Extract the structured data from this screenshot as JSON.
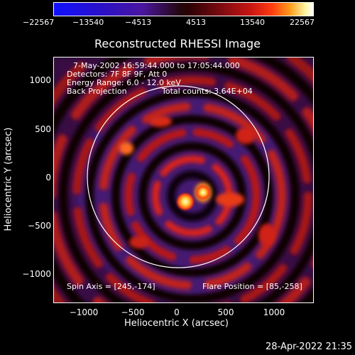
{
  "colorbar": {
    "ticks": [
      "−22567",
      "−13540",
      "−4513",
      "4513",
      "13540",
      "22567"
    ]
  },
  "title": "Reconstructed RHESSI Image",
  "info": {
    "line1": "7-May-2002 16:59:44.000 to 17:05:44.000",
    "line2": "Detectors: 7F 8F 9F, Att 0",
    "line3": "Energy Range: 6.0 - 12.0 keV",
    "line4_left": "Back Projection",
    "line4_right": "Total counts: 3.64E+04",
    "spin_axis": "Spin Axis = [245,-174]",
    "flare_position": "Flare Position = [85,-258]"
  },
  "axes": {
    "xlabel": "Heliocentric X (arcsec)",
    "ylabel": "Heliocentric Y (arcsec)",
    "xticks": [
      "−1000",
      "−500",
      "0",
      "500",
      "1000"
    ],
    "yticks": [
      "1000",
      "500",
      "0",
      "−500",
      "−1000"
    ]
  },
  "timestamp": "28-Apr-2022 21:35"
}
